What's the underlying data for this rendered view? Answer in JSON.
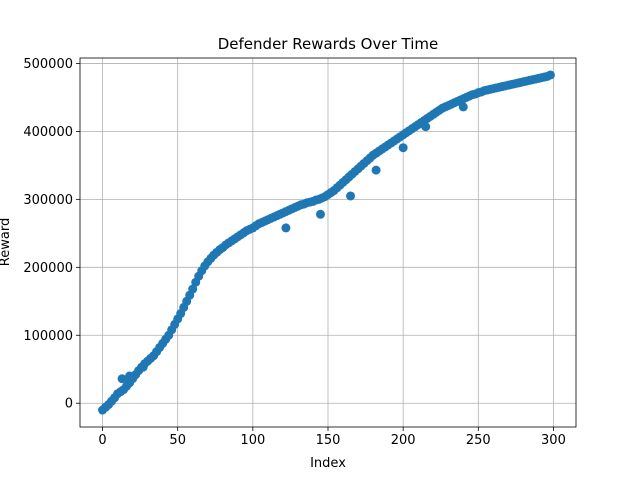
{
  "chart_data": {
    "type": "scatter",
    "title": "Defender Rewards Over Time",
    "xlabel": "Index",
    "ylabel": "Reward",
    "xlim": [
      -15,
      315
    ],
    "ylim": [
      -35000,
      508000
    ],
    "xticks": [
      0,
      50,
      100,
      150,
      200,
      250,
      300
    ],
    "yticks": [
      0,
      100000,
      200000,
      300000,
      400000,
      500000
    ],
    "grid": true,
    "marker_color": "#1f77b4",
    "series": [
      {
        "x": [
          0,
          2,
          4,
          6,
          8,
          10,
          12,
          14,
          16,
          18,
          20,
          22,
          24,
          26,
          28,
          30,
          32,
          34,
          36,
          38,
          40,
          42,
          44,
          46,
          48,
          50,
          52,
          54,
          56,
          58,
          60,
          62,
          64,
          66,
          68,
          70,
          72,
          74,
          76,
          78,
          80,
          82,
          84,
          86,
          88,
          90,
          92,
          94,
          96,
          98,
          100,
          102,
          104,
          106,
          108,
          110,
          112,
          114,
          116,
          118,
          120,
          122,
          124,
          126,
          128,
          130,
          132,
          134,
          136,
          138,
          140,
          142,
          144,
          146,
          148,
          150,
          152,
          154,
          156,
          158,
          160,
          162,
          164,
          166,
          168,
          170,
          172,
          174,
          176,
          178,
          180,
          182,
          184,
          186,
          188,
          190,
          192,
          194,
          196,
          198,
          200,
          202,
          204,
          206,
          208,
          210,
          212,
          214,
          216,
          218,
          220,
          222,
          224,
          226,
          228,
          230,
          232,
          234,
          236,
          238,
          240,
          242,
          244,
          246,
          248,
          250,
          252,
          254,
          256,
          258,
          260,
          262,
          264,
          266,
          268,
          270,
          272,
          274,
          276,
          278,
          280,
          282,
          284,
          286,
          288,
          290,
          292,
          294,
          296,
          298,
          13,
          18,
          27,
          122,
          145,
          165,
          182,
          200,
          215,
          240
        ],
        "y": [
          -10000,
          -6000,
          -2000,
          3000,
          8000,
          14000,
          17000,
          20000,
          25000,
          30000,
          36000,
          42000,
          48000,
          53000,
          58000,
          62000,
          66000,
          70000,
          76000,
          82000,
          88000,
          94000,
          100000,
          108000,
          116000,
          124000,
          132000,
          141000,
          150000,
          159000,
          168000,
          178000,
          187000,
          195000,
          202000,
          208000,
          213000,
          218000,
          222000,
          226000,
          229000,
          233000,
          236000,
          239000,
          242000,
          245000,
          248000,
          251000,
          254000,
          256000,
          258000,
          261000,
          264000,
          266000,
          268000,
          270000,
          272000,
          274000,
          276000,
          278000,
          280000,
          282000,
          284000,
          286000,
          288000,
          290000,
          292000,
          293000,
          295000,
          296000,
          297000,
          299000,
          300000,
          302000,
          304000,
          307000,
          310000,
          313000,
          317000,
          321000,
          325000,
          329000,
          333000,
          337000,
          341000,
          345000,
          349000,
          353000,
          357000,
          361000,
          365000,
          368000,
          371000,
          374000,
          377000,
          380000,
          383000,
          386000,
          389000,
          392000,
          395000,
          398000,
          401000,
          404000,
          407000,
          410000,
          413000,
          416000,
          419000,
          422000,
          425000,
          428000,
          431000,
          434000,
          436000,
          438000,
          440000,
          442000,
          444000,
          446000,
          448000,
          450000,
          452000,
          454000,
          455000,
          457000,
          458000,
          460000,
          461000,
          462000,
          463000,
          464000,
          465000,
          466000,
          467000,
          468000,
          469000,
          470000,
          471000,
          472000,
          473000,
          474000,
          475000,
          476000,
          477000,
          478000,
          479000,
          480000,
          481000,
          483000,
          36000,
          40000,
          53000,
          258000,
          278000,
          305000,
          343000,
          376000,
          407000,
          436000
        ]
      }
    ]
  }
}
